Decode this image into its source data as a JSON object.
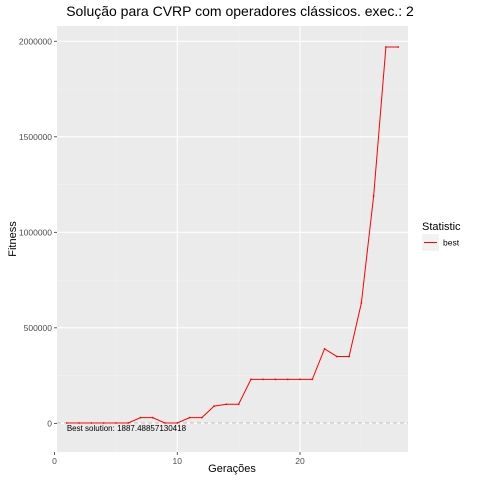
{
  "chart_data": {
    "type": "line",
    "title": "Solução para CVRP com operadores clássicos. exec.: 2",
    "xlabel": "Gerações",
    "ylabel": "Fitness",
    "xlim": [
      0.2,
      28.8
    ],
    "ylim": [
      -150000,
      2080000
    ],
    "x_ticks": [
      0,
      10,
      20
    ],
    "x_tick_labels": [
      "0",
      "10",
      "20"
    ],
    "y_ticks": [
      0,
      500000,
      1000000,
      1500000,
      2000000
    ],
    "y_tick_labels": [
      "0",
      "500000",
      "1000000",
      "1500000",
      "2000000"
    ],
    "grid": true,
    "legend": {
      "title": "Statistic",
      "position": "right"
    },
    "series": [
      {
        "name": "best",
        "color": "#ff0000",
        "x": [
          1,
          2,
          3,
          4,
          5,
          6,
          7,
          8,
          9,
          10,
          11,
          12,
          13,
          14,
          15,
          16,
          17,
          18,
          19,
          20,
          21,
          22,
          23,
          24,
          25,
          26,
          27,
          28
        ],
        "y": [
          1887.49,
          1887.49,
          1887.49,
          1887.49,
          1887.49,
          1887.49,
          30000,
          30000,
          1887.49,
          1887.49,
          30000,
          30000,
          90000,
          100000,
          100000,
          230000,
          230000,
          230000,
          230000,
          230000,
          230000,
          390000,
          350000,
          350000,
          630000,
          1190000,
          1970000,
          1970000
        ]
      }
    ],
    "reference_line": {
      "y": 1887.49,
      "style": "dashed",
      "color": "#bdbdbd"
    },
    "annotation": {
      "text": "Best solution: 1887.48857130418",
      "x": 1,
      "y": 1887.49
    }
  }
}
